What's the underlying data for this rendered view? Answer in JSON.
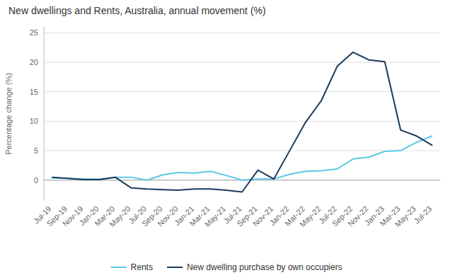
{
  "chart_data": {
    "type": "line",
    "title": "New dwellings and Rents, Australia, annual movement (%)",
    "y_label": "Percentage change (%)",
    "categories": [
      "Jul-19",
      "Sep-19",
      "Nov-19",
      "Jan-20",
      "Mar-20",
      "May-20",
      "Jul-20",
      "Sep-20",
      "Nov-20",
      "Jan-21",
      "Mar-21",
      "May-21",
      "Jul-21",
      "Sep-21",
      "Nov-21",
      "Jan-22",
      "Mar-22",
      "May-22",
      "Jul-22",
      "Sep-22",
      "Nov-22",
      "Jan-23",
      "Mar-23",
      "May-23",
      "Jul-23"
    ],
    "series": [
      {
        "name": "Rents",
        "color": "#5bc8e8",
        "values": [
          0.4,
          0.3,
          0.2,
          0.15,
          0.5,
          0.5,
          0.0,
          0.9,
          1.3,
          1.2,
          1.5,
          0.8,
          0.0,
          0.2,
          0.2,
          1.0,
          1.5,
          1.6,
          1.9,
          3.6,
          3.9,
          4.9,
          5.0,
          6.4,
          7.5
        ]
      },
      {
        "name": "New dwelling purchase by own occupiers",
        "color": "#1a3a5c",
        "values": [
          0.5,
          0.3,
          0.1,
          0.1,
          0.5,
          -1.3,
          -1.5,
          -1.6,
          -1.7,
          -1.5,
          -1.5,
          -1.7,
          -2.0,
          1.7,
          0.2,
          5.0,
          9.8,
          13.5,
          19.3,
          21.7,
          20.4,
          20.1,
          8.5,
          7.5,
          5.9
        ]
      }
    ],
    "ylim": [
      -3.5,
      26
    ],
    "yticks": [
      0,
      5,
      10,
      15,
      20,
      25
    ],
    "grid": true,
    "legend": "bottom"
  }
}
